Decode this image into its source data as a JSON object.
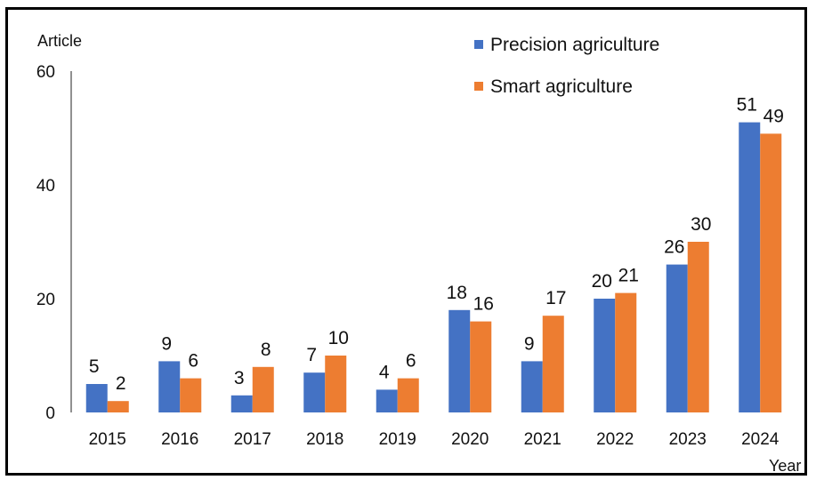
{
  "chart_data": {
    "type": "bar",
    "title": "",
    "ylabel": "Article",
    "xlabel": "Year",
    "ylim": [
      0,
      60
    ],
    "yticks": [
      "0",
      "20",
      "40",
      "60"
    ],
    "categories": [
      "2015",
      "2016",
      "2017",
      "2018",
      "2019",
      "2020",
      "2021",
      "2022",
      "2023",
      "2024"
    ],
    "series": [
      {
        "name": "Precision agriculture",
        "color": "#4472C4",
        "values": [
          5,
          9,
          3,
          7,
          4,
          18,
          9,
          20,
          26,
          51
        ]
      },
      {
        "name": "Smart agriculture",
        "color": "#ED7D31",
        "values": [
          2,
          6,
          8,
          10,
          6,
          16,
          17,
          21,
          30,
          49
        ]
      }
    ],
    "legend_position": "top-right",
    "grid": false
  }
}
